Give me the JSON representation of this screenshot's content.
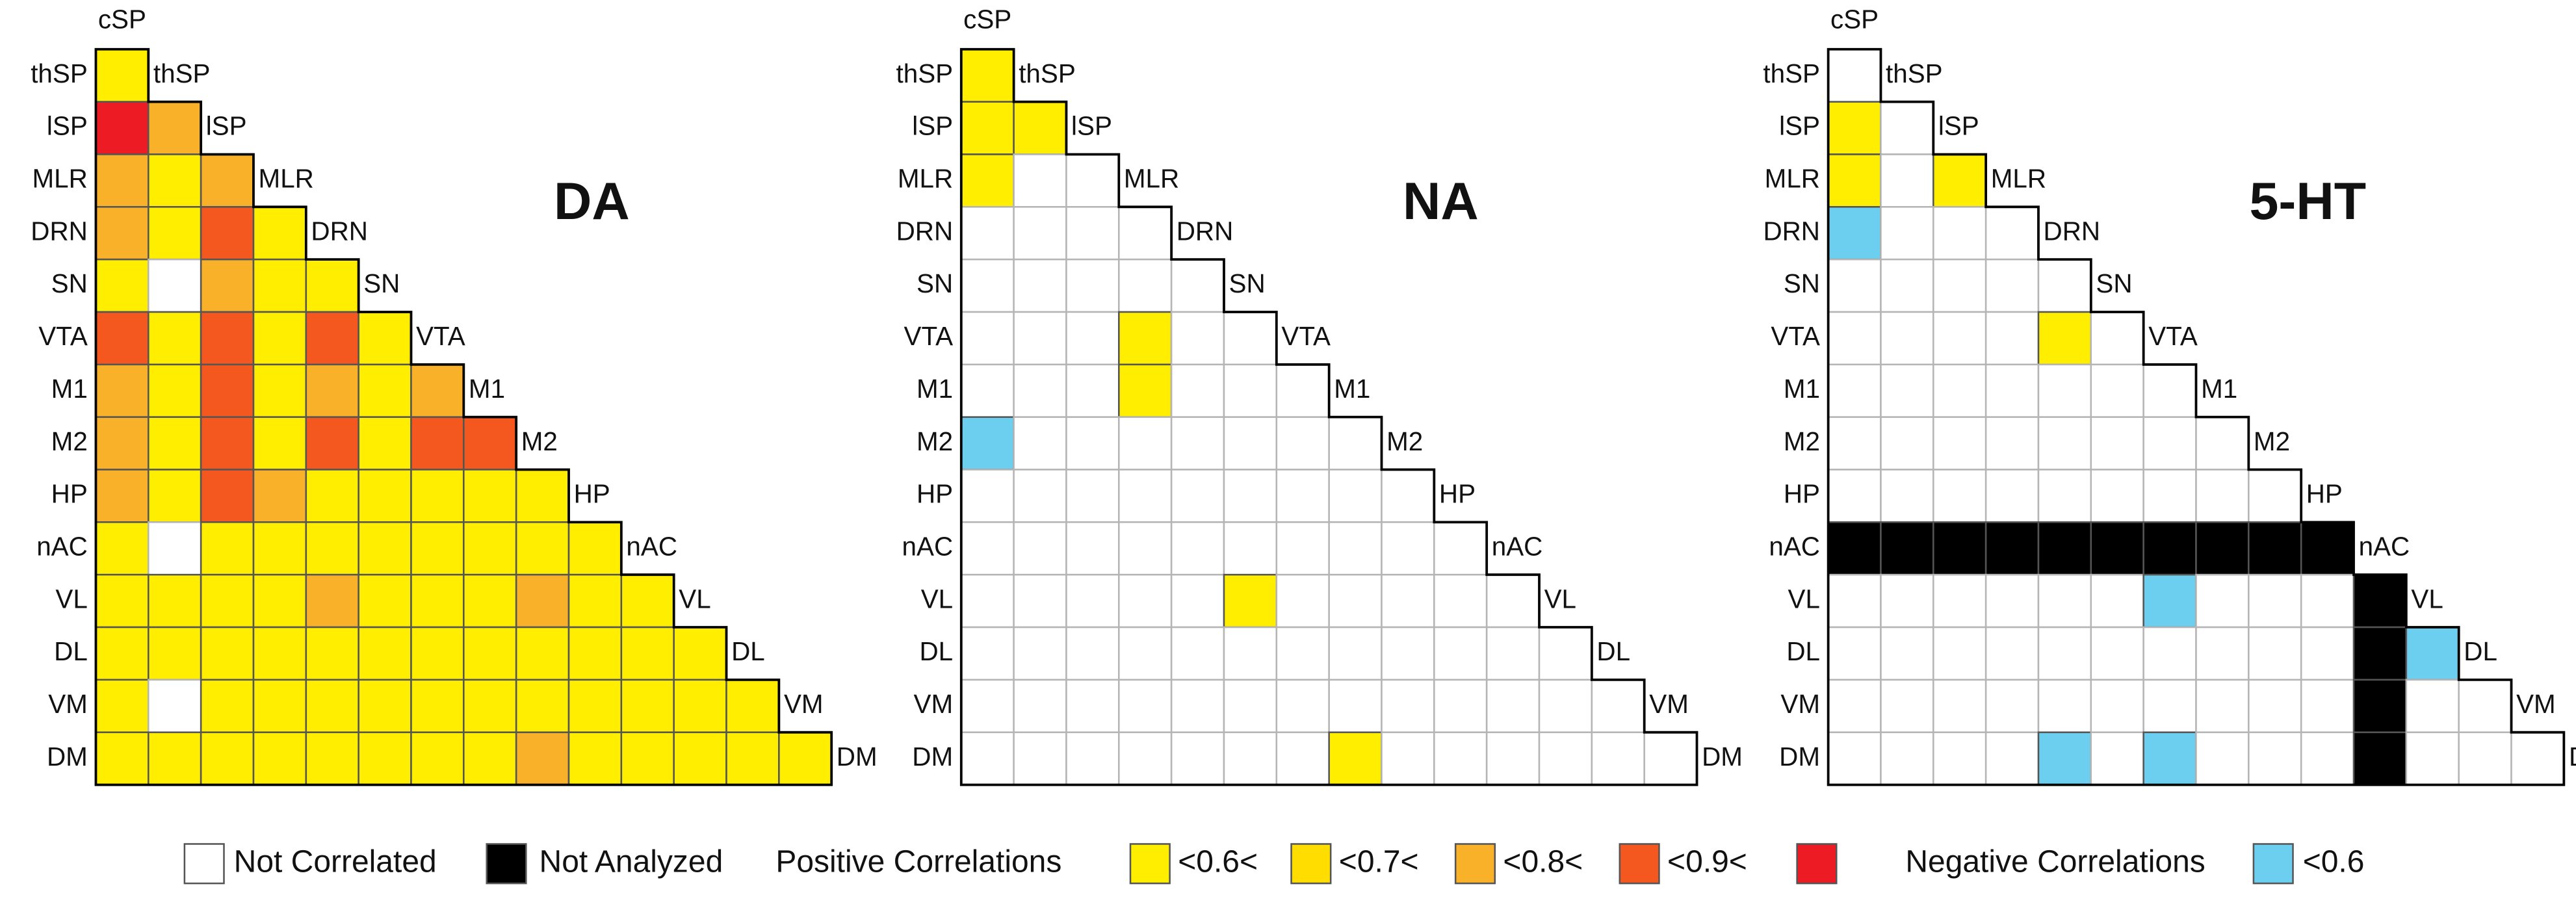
{
  "labels": [
    "cSP",
    "thSP",
    "lSP",
    "MLR",
    "DRN",
    "SN",
    "VTA",
    "M1",
    "M2",
    "HP",
    "nAC",
    "VL",
    "DL",
    "VM",
    "DM"
  ],
  "colors": [
    "#ffffff",
    "#000000",
    "#ffee00",
    "#ffdd00",
    "#f9b12a",
    "#f4581f",
    "#ed1c24",
    "#6dcff0"
  ],
  "panels": [
    {
      "title": "DA",
      "cells": [
        [
          2
        ],
        [
          6,
          4
        ],
        [
          4,
          2,
          4
        ],
        [
          4,
          2,
          5,
          2
        ],
        [
          2,
          0,
          4,
          2,
          2
        ],
        [
          5,
          2,
          5,
          2,
          5,
          2
        ],
        [
          4,
          2,
          5,
          2,
          4,
          2,
          4
        ],
        [
          4,
          2,
          5,
          2,
          5,
          2,
          5,
          5
        ],
        [
          4,
          2,
          5,
          4,
          2,
          2,
          2,
          2,
          2
        ],
        [
          2,
          0,
          2,
          2,
          2,
          2,
          2,
          2,
          2,
          2
        ],
        [
          2,
          2,
          2,
          2,
          4,
          2,
          2,
          2,
          4,
          2,
          2
        ],
        [
          2,
          2,
          2,
          2,
          2,
          2,
          2,
          2,
          2,
          2,
          2,
          2
        ],
        [
          2,
          0,
          2,
          2,
          2,
          2,
          2,
          2,
          2,
          2,
          2,
          2,
          2
        ],
        [
          2,
          2,
          2,
          2,
          2,
          2,
          2,
          2,
          4,
          2,
          2,
          2,
          2,
          2
        ]
      ]
    },
    {
      "title": "NA",
      "cells": [
        [
          2
        ],
        [
          2,
          2
        ],
        [
          2,
          0,
          0
        ],
        [
          0,
          0,
          0,
          0
        ],
        [
          0,
          0,
          0,
          0,
          0
        ],
        [
          0,
          0,
          0,
          2,
          0,
          0
        ],
        [
          0,
          0,
          0,
          2,
          0,
          0,
          0
        ],
        [
          7,
          0,
          0,
          0,
          0,
          0,
          0,
          0
        ],
        [
          0,
          0,
          0,
          0,
          0,
          0,
          0,
          0,
          0
        ],
        [
          0,
          0,
          0,
          0,
          0,
          0,
          0,
          0,
          0,
          0
        ],
        [
          0,
          0,
          0,
          0,
          0,
          2,
          0,
          0,
          0,
          0,
          0
        ],
        [
          0,
          0,
          0,
          0,
          0,
          0,
          0,
          0,
          0,
          0,
          0,
          0
        ],
        [
          0,
          0,
          0,
          0,
          0,
          0,
          0,
          0,
          0,
          0,
          0,
          0,
          0
        ],
        [
          0,
          0,
          0,
          0,
          0,
          0,
          0,
          2,
          0,
          0,
          0,
          0,
          0,
          0
        ]
      ]
    },
    {
      "title": "5-HT",
      "cells": [
        [
          0
        ],
        [
          2,
          0
        ],
        [
          2,
          0,
          2
        ],
        [
          7,
          0,
          0,
          0
        ],
        [
          0,
          0,
          0,
          0,
          0
        ],
        [
          0,
          0,
          0,
          0,
          2,
          0
        ],
        [
          0,
          0,
          0,
          0,
          0,
          0,
          0
        ],
        [
          0,
          0,
          0,
          0,
          0,
          0,
          0,
          0
        ],
        [
          0,
          0,
          0,
          0,
          0,
          0,
          0,
          0,
          0
        ],
        [
          1,
          1,
          1,
          1,
          1,
          1,
          1,
          1,
          1,
          1
        ],
        [
          0,
          0,
          0,
          0,
          0,
          0,
          7,
          0,
          0,
          0,
          1
        ],
        [
          0,
          0,
          0,
          0,
          0,
          0,
          0,
          0,
          0,
          0,
          1,
          7
        ],
        [
          0,
          0,
          0,
          0,
          0,
          0,
          0,
          0,
          0,
          0,
          1,
          0,
          0
        ],
        [
          0,
          0,
          0,
          0,
          7,
          0,
          7,
          0,
          0,
          0,
          1,
          0,
          0,
          0
        ]
      ]
    }
  ],
  "legend": {
    "not_correlated": "Not Correlated",
    "not_analyzed": "Not Analyzed",
    "positive": "Positive Correlations",
    "positive_thresholds": [
      "<0.6<",
      "<0.7<",
      "<0.8<",
      "<0.9<"
    ],
    "negative": "Negative Correlations",
    "negative_threshold": "<0.6"
  }
}
